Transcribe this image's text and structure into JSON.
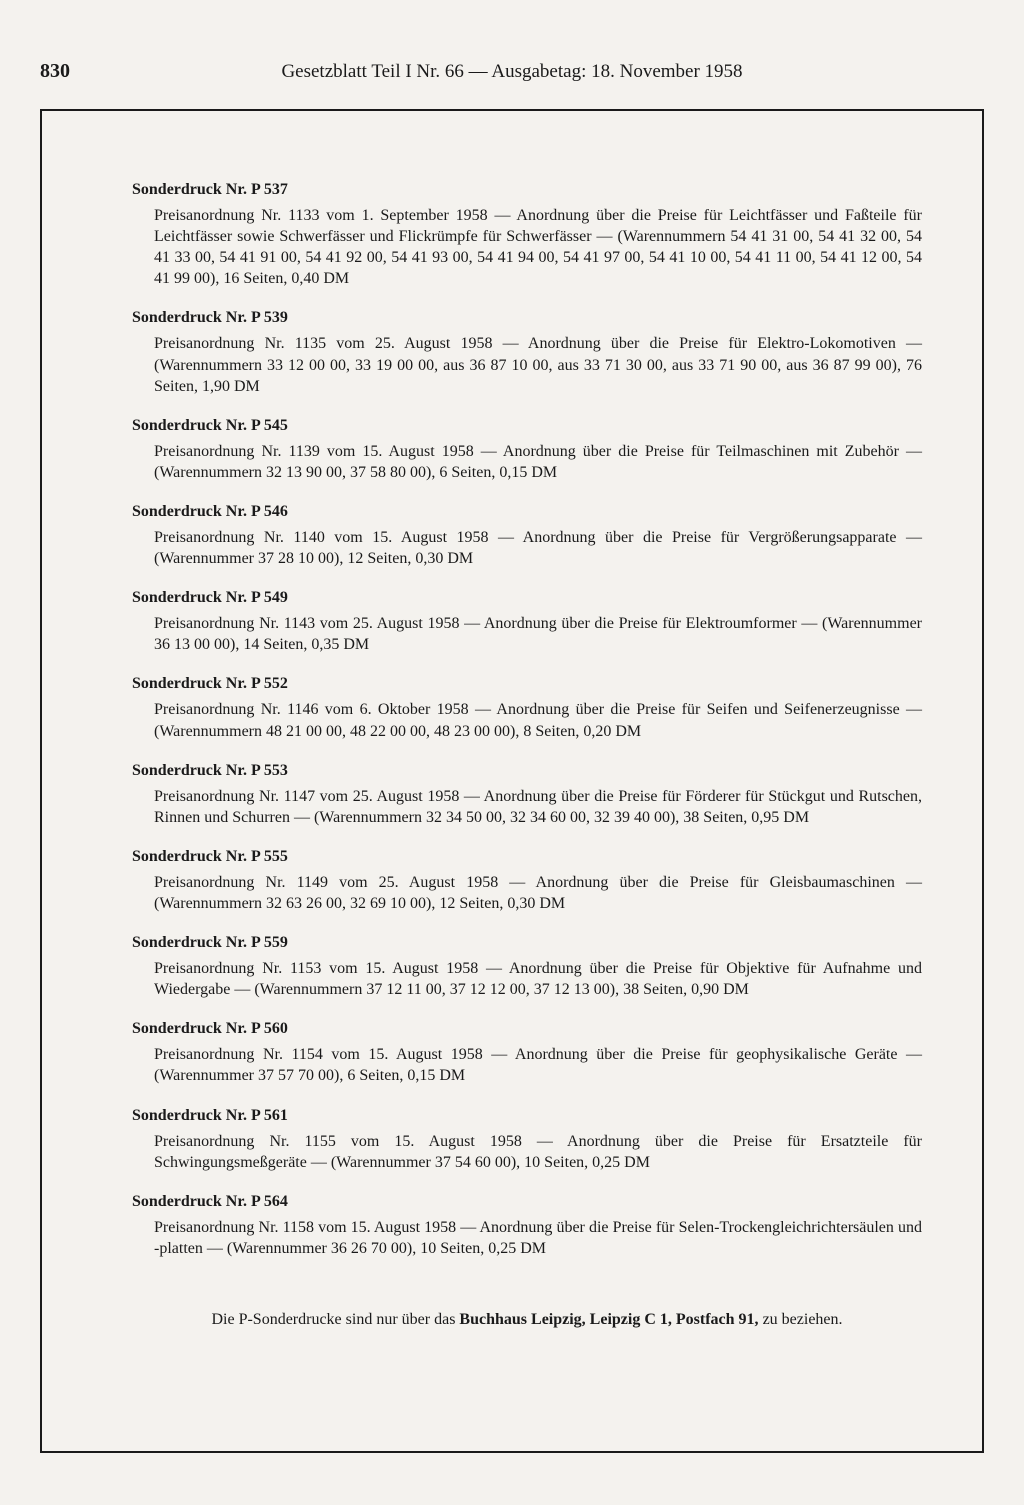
{
  "page_number": "830",
  "header": "Gesetzblatt Teil I Nr. 66 — Ausgabetag: 18. November 1958",
  "entries": [
    {
      "title": "Sonderdruck Nr. P 537",
      "body": "Preisanordnung Nr. 1133 vom 1. September 1958 — Anordnung über die Preise für Leichtfässer und Faßteile für Leichtfässer sowie Schwerfässer und Flickrümpfe für Schwerfässer — (Warennummern 54 41 31 00, 54 41 32 00, 54 41 33 00, 54 41 91 00, 54 41 92 00, 54 41 93 00, 54 41 94 00, 54 41 97 00, 54 41 10 00, 54 41 11 00, 54 41 12 00, 54 41 99 00), 16 Seiten, 0,40 DM"
    },
    {
      "title": "Sonderdruck Nr. P 539",
      "body": "Preisanordnung Nr. 1135 vom 25. August 1958 — Anordnung über die Preise für Elektro-Lokomotiven — (Warennummern 33 12 00 00, 33 19 00 00, aus 36 87 10 00, aus 33 71 30 00, aus 33 71 90 00, aus 36 87 99 00), 76 Seiten, 1,90 DM"
    },
    {
      "title": "Sonderdruck Nr. P 545",
      "body": "Preisanordnung Nr. 1139 vom 15. August 1958 — Anordnung über die Preise für Teilmaschinen mit Zubehör — (Warennummern 32 13 90 00, 37 58 80 00), 6 Seiten, 0,15 DM"
    },
    {
      "title": "Sonderdruck Nr. P 546",
      "body": "Preisanordnung Nr. 1140 vom 15. August 1958 — Anordnung über die Preise für Vergrößerungsapparate — (Warennummer 37 28 10 00), 12 Seiten, 0,30 DM"
    },
    {
      "title": "Sonderdruck Nr. P 549",
      "body": "Preisanordnung Nr. 1143 vom 25. August 1958 — Anordnung über die Preise für Elektroumformer — (Warennummer 36 13 00 00), 14 Seiten, 0,35 DM"
    },
    {
      "title": "Sonderdruck Nr. P 552",
      "body": "Preisanordnung Nr. 1146 vom 6. Oktober 1958 — Anordnung über die Preise für Seifen und Seifenerzeugnisse — (Warennummern 48 21 00 00, 48 22 00 00, 48 23 00 00), 8 Seiten, 0,20 DM"
    },
    {
      "title": "Sonderdruck Nr. P 553",
      "body": "Preisanordnung Nr. 1147 vom 25. August 1958 — Anordnung über die Preise für Förderer für Stückgut und Rutschen, Rinnen und Schurren — (Warennummern 32 34 50 00, 32 34 60 00, 32 39 40 00), 38 Seiten, 0,95 DM"
    },
    {
      "title": "Sonderdruck Nr. P 555",
      "body": "Preisanordnung Nr. 1149 vom 25. August 1958 — Anordnung über die Preise für Gleisbaumaschinen — (Warennummern 32 63 26 00, 32 69 10 00), 12 Seiten, 0,30 DM"
    },
    {
      "title": "Sonderdruck Nr. P 559",
      "body": "Preisanordnung Nr. 1153 vom 15. August 1958 — Anordnung über die Preise für Objektive für Aufnahme und Wiedergabe — (Warennummern 37 12 11 00, 37 12 12 00, 37 12 13 00), 38 Seiten, 0,90 DM"
    },
    {
      "title": "Sonderdruck Nr. P 560",
      "body": "Preisanordnung Nr. 1154 vom 15. August 1958 — Anordnung über die Preise für geophysikalische Geräte — (Warennummer 37 57 70 00), 6 Seiten, 0,15 DM"
    },
    {
      "title": "Sonderdruck Nr. P 561",
      "body": "Preisanordnung Nr. 1155 vom 15. August 1958 — Anordnung über die Preise für Ersatzteile für Schwingungsmeßgeräte — (Warennummer 37 54 60 00), 10 Seiten, 0,25 DM"
    },
    {
      "title": "Sonderdruck Nr. P 564",
      "body": "Preisanordnung Nr. 1158 vom 15. August 1958 — Anordnung über die Preise für Selen-Trockengleichrichtersäulen und -platten — (Warennummer 36 26 70 00), 10 Seiten, 0,25 DM"
    }
  ],
  "footer_prefix": "Die P-Sonderdrucke sind nur über das ",
  "footer_bold": "Buchhaus Leipzig, Leipzig C 1, Postfach 91,",
  "footer_suffix": " zu beziehen."
}
